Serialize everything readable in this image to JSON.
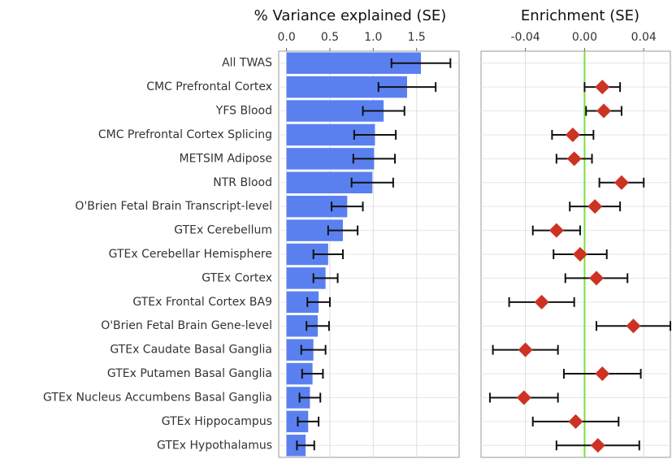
{
  "chart_data": [
    {
      "type": "bar",
      "title": "% Variance explained (SE)",
      "categories": [
        "All TWAS",
        "CMC Prefrontal Cortex",
        "YFS Blood",
        "CMC Prefrontal Cortex Splicing",
        "METSIM Adipose",
        "NTR Blood",
        "O'Brien Fetal Brain Transcript-level",
        "GTEx Cerebellum",
        "GTEx Cerebellar Hemisphere",
        "GTEx Cortex",
        "GTEx Frontal Cortex BA9",
        "O'Brien Fetal Brain Gene-level",
        "GTEx Caudate Basal Ganglia",
        "GTEx Putamen Basal Ganglia",
        "GTEx Nucleus Accumbens Basal Ganglia",
        "GTEx Hippocampus",
        "GTEx Hypothalamus"
      ],
      "values": [
        1.55,
        1.39,
        1.12,
        1.02,
        1.01,
        0.99,
        0.7,
        0.65,
        0.48,
        0.45,
        0.37,
        0.36,
        0.31,
        0.3,
        0.27,
        0.25,
        0.22
      ],
      "errors": [
        0.34,
        0.33,
        0.24,
        0.24,
        0.24,
        0.24,
        0.18,
        0.17,
        0.17,
        0.14,
        0.13,
        0.13,
        0.14,
        0.12,
        0.12,
        0.12,
        0.1
      ],
      "color": "#5a80f0",
      "xlim": [
        -0.09,
        1.99
      ],
      "xticks": [
        {
          "value": 0,
          "label": "0.0"
        },
        {
          "value": 0.5,
          "label": "0.5"
        },
        {
          "value": 1,
          "label": "1.0"
        },
        {
          "value": 1.5,
          "label": "1.5"
        }
      ],
      "grid": true
    },
    {
      "type": "dot",
      "title": "Enrichment (SE)",
      "values": [
        null,
        0.012,
        0.013,
        -0.008,
        -0.007,
        0.025,
        0.007,
        -0.019,
        -0.003,
        0.008,
        -0.029,
        0.033,
        -0.04,
        0.012,
        -0.041,
        -0.006,
        0.009
      ],
      "errors": [
        null,
        0.012,
        0.012,
        0.014,
        0.012,
        0.015,
        0.017,
        0.016,
        0.018,
        0.021,
        0.022,
        0.025,
        0.022,
        0.026,
        0.023,
        0.029,
        0.028
      ],
      "color": "#cc3322",
      "reference_line": 0,
      "reference_color": "#7be040",
      "xlim": [
        -0.07,
        0.058
      ],
      "xticks": [
        -0.04,
        {
          "value": 0,
          "label": "0.00"
        },
        0.04
      ],
      "grid": true
    }
  ]
}
